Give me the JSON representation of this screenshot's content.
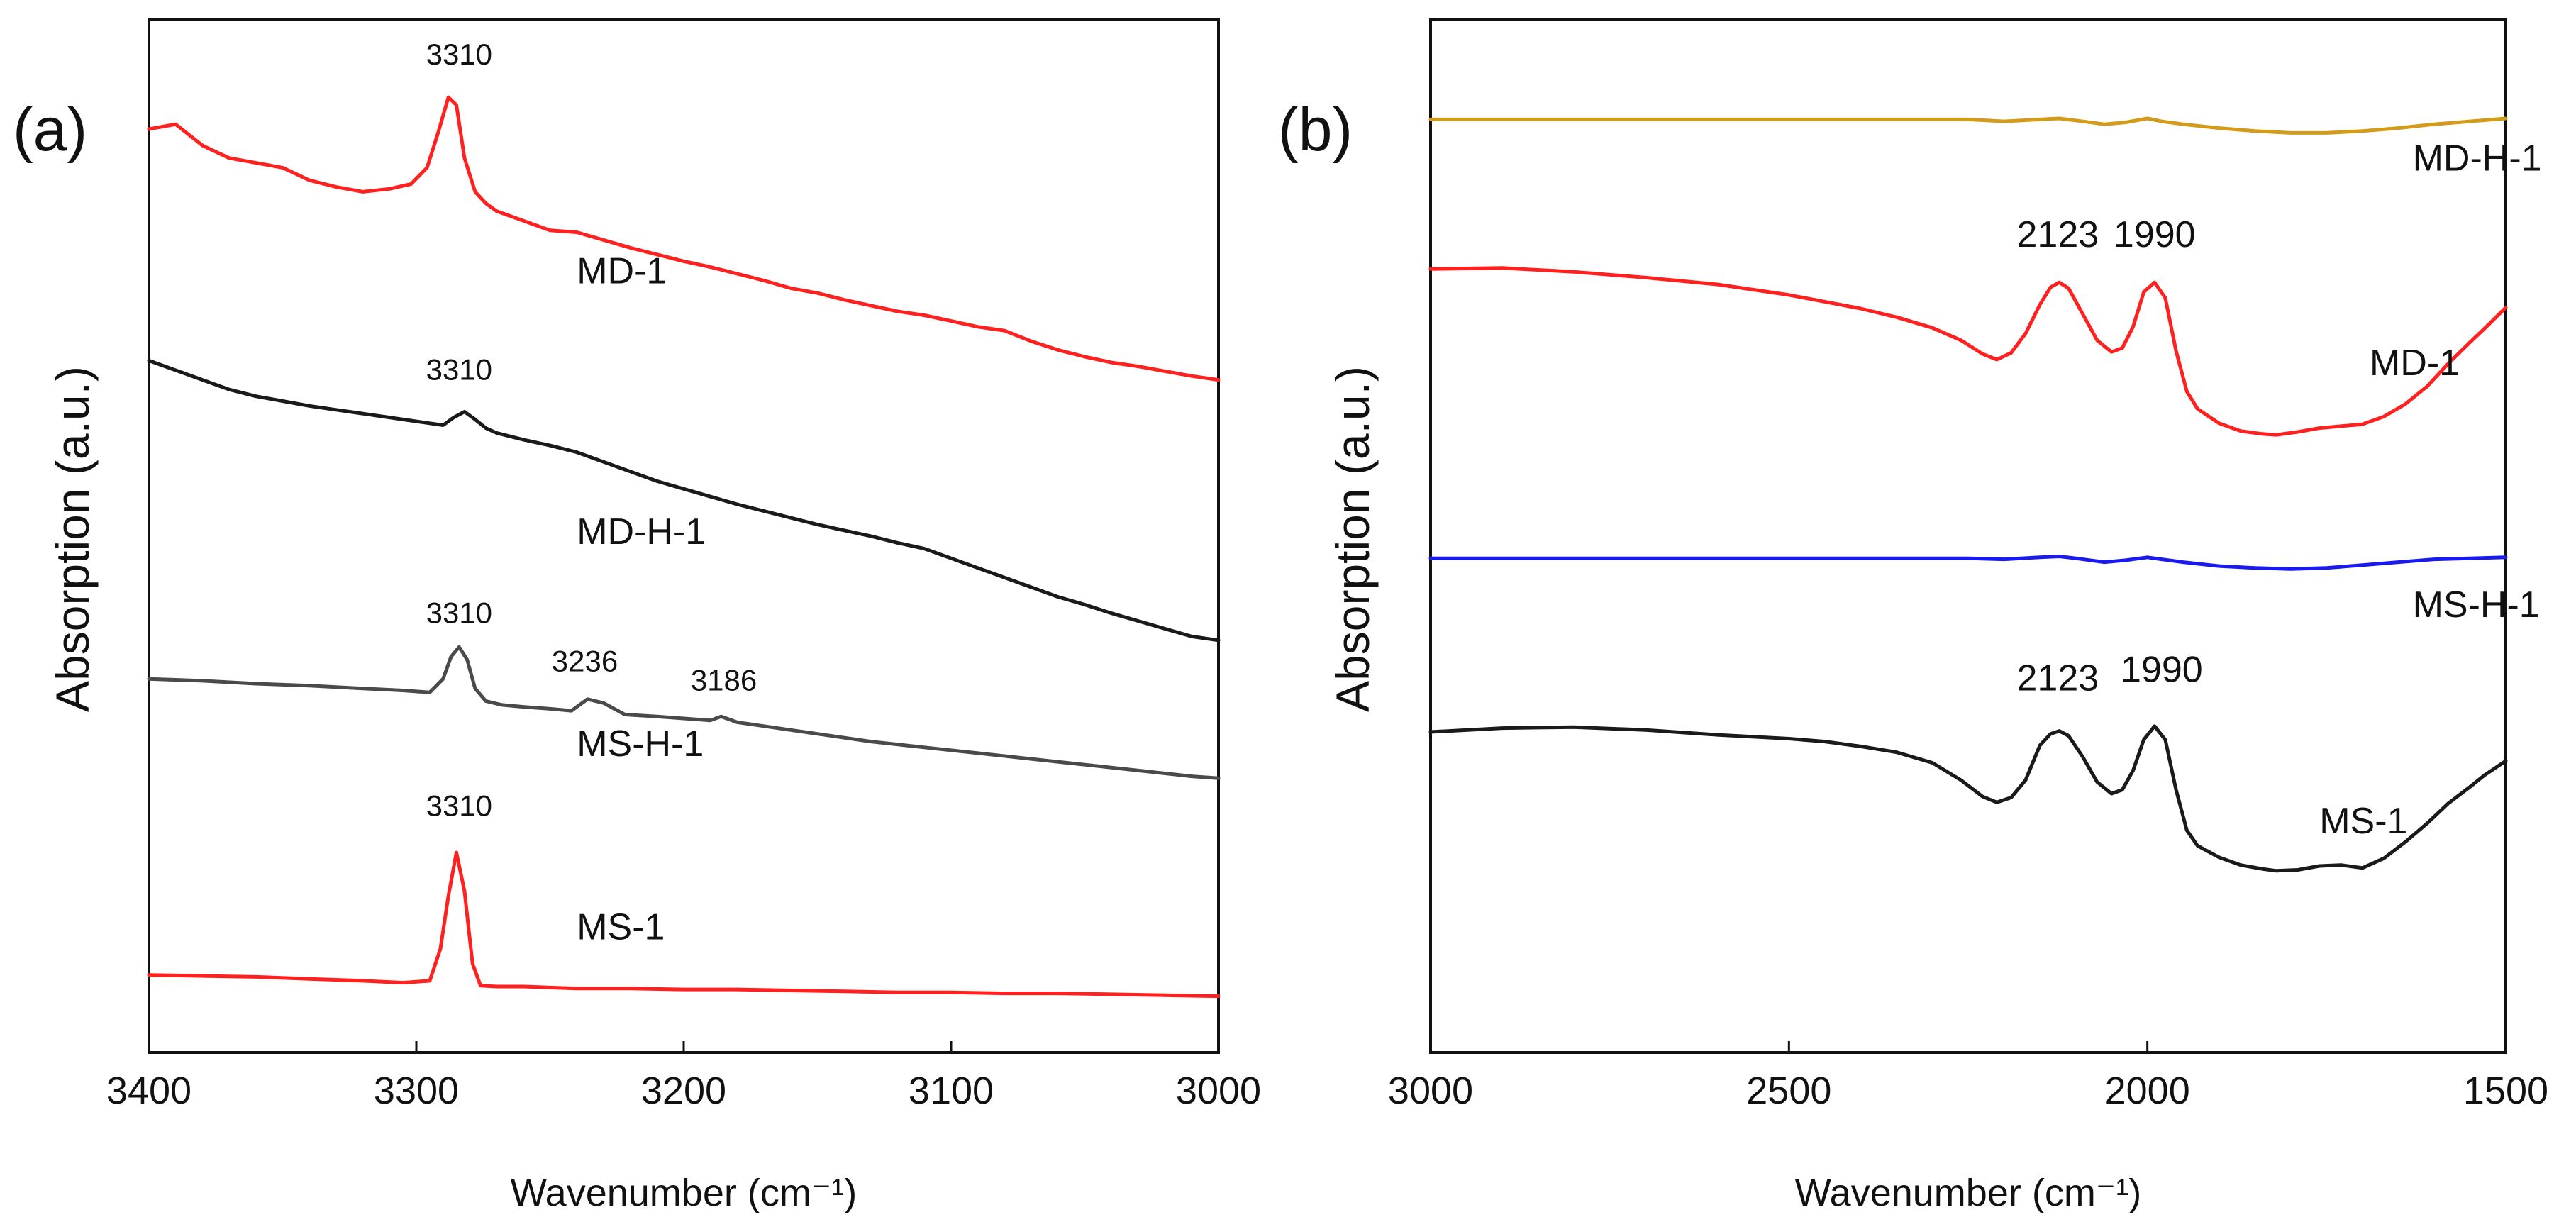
{
  "chart_data": [
    {
      "panel": "(a)",
      "type": "line",
      "xlabel": "Wavenumber (cm⁻¹)",
      "ylabel": "Absorption (a.u.)",
      "xlim": [
        3400,
        3000
      ],
      "ylim": [
        0,
        100
      ],
      "x_ticks": [
        "3400",
        "3300",
        "3200",
        "3100",
        "3000"
      ],
      "x_tick_values": [
        3400,
        3300,
        3200,
        3100,
        3000
      ],
      "grid": false,
      "series": [
        {
          "name": "MD-1",
          "color": "#ff2020",
          "x": [
            3400,
            3390,
            3380,
            3370,
            3360,
            3350,
            3340,
            3330,
            3320,
            3310,
            3302,
            3296,
            3292,
            3288,
            3285,
            3282,
            3278,
            3274,
            3270,
            3260,
            3250,
            3240,
            3230,
            3220,
            3210,
            3200,
            3190,
            3180,
            3170,
            3160,
            3150,
            3140,
            3130,
            3120,
            3110,
            3100,
            3090,
            3080,
            3070,
            3060,
            3050,
            3040,
            3030,
            3020,
            3010,
            3000
          ],
          "values": [
            92.5,
            93.0,
            90.8,
            89.5,
            89.0,
            88.5,
            87.2,
            86.5,
            86.0,
            86.3,
            86.8,
            88.5,
            92.0,
            95.8,
            95.0,
            89.5,
            86.0,
            84.8,
            84.0,
            83.0,
            82.0,
            81.8,
            81.0,
            80.2,
            79.5,
            78.8,
            78.2,
            77.5,
            76.8,
            76.0,
            75.5,
            74.8,
            74.2,
            73.6,
            73.2,
            72.6,
            72.0,
            71.6,
            70.5,
            69.6,
            68.9,
            68.3,
            67.9,
            67.4,
            66.9,
            66.5
          ]
        },
        {
          "name": "MD-H-1",
          "color": "#1a1a1a",
          "x": [
            3400,
            3390,
            3380,
            3370,
            3360,
            3350,
            3340,
            3330,
            3320,
            3310,
            3300,
            3295,
            3290,
            3286,
            3282,
            3278,
            3274,
            3270,
            3260,
            3250,
            3240,
            3230,
            3220,
            3210,
            3200,
            3190,
            3180,
            3170,
            3160,
            3150,
            3140,
            3130,
            3120,
            3110,
            3100,
            3090,
            3080,
            3070,
            3060,
            3050,
            3040,
            3030,
            3020,
            3010,
            3000
          ],
          "values": [
            68.5,
            67.5,
            66.5,
            65.5,
            64.8,
            64.3,
            63.8,
            63.4,
            63.0,
            62.6,
            62.2,
            62.0,
            61.8,
            62.6,
            63.2,
            62.4,
            61.5,
            61.0,
            60.3,
            59.7,
            59.0,
            58.0,
            57.0,
            56.0,
            55.2,
            54.4,
            53.6,
            52.9,
            52.2,
            51.5,
            50.9,
            50.3,
            49.6,
            49.0,
            48.0,
            47.0,
            46.0,
            45.0,
            44.0,
            43.2,
            42.3,
            41.5,
            40.7,
            39.9,
            39.5
          ]
        },
        {
          "name": "MS-H-1",
          "color": "#4a4a4a",
          "x": [
            3400,
            3380,
            3360,
            3340,
            3320,
            3305,
            3295,
            3290,
            3287,
            3284,
            3281,
            3278,
            3274,
            3268,
            3260,
            3250,
            3242,
            3236,
            3230,
            3222,
            3210,
            3200,
            3190,
            3186,
            3180,
            3170,
            3150,
            3130,
            3110,
            3090,
            3070,
            3050,
            3030,
            3010,
            3000
          ],
          "values": [
            35.5,
            35.3,
            35.0,
            34.8,
            34.5,
            34.3,
            34.1,
            35.5,
            37.8,
            38.8,
            37.5,
            34.5,
            33.2,
            32.8,
            32.6,
            32.4,
            32.2,
            33.4,
            33.0,
            31.8,
            31.6,
            31.4,
            31.2,
            31.6,
            31.0,
            30.6,
            29.8,
            29.0,
            28.4,
            27.8,
            27.2,
            26.6,
            26.0,
            25.4,
            25.2
          ]
        },
        {
          "name": "MS-1",
          "color": "#ff2020",
          "x": [
            3400,
            3380,
            3360,
            3340,
            3320,
            3305,
            3295,
            3291,
            3288,
            3285,
            3282,
            3279,
            3276,
            3270,
            3260,
            3250,
            3240,
            3220,
            3200,
            3180,
            3160,
            3140,
            3120,
            3100,
            3080,
            3060,
            3040,
            3020,
            3000
          ],
          "values": [
            4.8,
            4.7,
            4.6,
            4.4,
            4.2,
            4.0,
            4.2,
            7.5,
            13.0,
            17.5,
            13.5,
            6.0,
            3.7,
            3.6,
            3.6,
            3.5,
            3.4,
            3.4,
            3.3,
            3.3,
            3.2,
            3.1,
            3.0,
            3.0,
            2.9,
            2.9,
            2.8,
            2.7,
            2.6
          ]
        }
      ],
      "series_labels": [
        {
          "text": "MD-1",
          "x": 3240,
          "y": 76.5
        },
        {
          "text": "MD-H-1",
          "x": 3240,
          "y": 49.5
        },
        {
          "text": "MS-H-1",
          "x": 3240,
          "y": 27.5
        },
        {
          "text": "MS-1",
          "x": 3240,
          "y": 8.5
        }
      ],
      "annotations": [
        {
          "text": "3310",
          "x": 3284,
          "y": 99.2
        },
        {
          "text": "3310",
          "x": 3284,
          "y": 66.5
        },
        {
          "text": "3310",
          "x": 3284,
          "y": 41.3
        },
        {
          "text": "3236",
          "x": 3237,
          "y": 36.3
        },
        {
          "text": "3186",
          "x": 3185,
          "y": 34.3
        },
        {
          "text": "3310",
          "x": 3284,
          "y": 21.3
        }
      ]
    },
    {
      "panel": "(b)",
      "type": "line",
      "xlabel": "Wavenumber (cm⁻¹)",
      "ylabel": "Absorption (a.u.)",
      "xlim": [
        3000,
        1500
      ],
      "ylim": [
        0,
        100
      ],
      "x_ticks": [
        "3000",
        "2500",
        "2000",
        "1500"
      ],
      "x_tick_values": [
        3000,
        2500,
        2000,
        1500
      ],
      "grid": false,
      "series": [
        {
          "name": "MD-H-1",
          "color": "#d49a1a",
          "x": [
            3000,
            2800,
            2600,
            2400,
            2300,
            2250,
            2200,
            2150,
            2123,
            2100,
            2060,
            2030,
            2000,
            1980,
            1950,
            1900,
            1850,
            1800,
            1750,
            1700,
            1650,
            1600,
            1550,
            1500
          ],
          "values": [
            93.5,
            93.5,
            93.5,
            93.5,
            93.5,
            93.5,
            93.3,
            93.5,
            93.6,
            93.4,
            93.0,
            93.2,
            93.6,
            93.3,
            93.0,
            92.6,
            92.3,
            92.1,
            92.1,
            92.3,
            92.6,
            93.0,
            93.3,
            93.6
          ]
        },
        {
          "name": "MD-1",
          "color": "#ff2020",
          "x": [
            3000,
            2900,
            2800,
            2700,
            2600,
            2500,
            2450,
            2400,
            2350,
            2300,
            2260,
            2230,
            2210,
            2190,
            2170,
            2150,
            2135,
            2123,
            2110,
            2090,
            2070,
            2050,
            2035,
            2020,
            2005,
            1990,
            1975,
            1960,
            1945,
            1930,
            1900,
            1870,
            1840,
            1820,
            1790,
            1760,
            1730,
            1700,
            1670,
            1640,
            1610,
            1580,
            1550,
            1530,
            1500
          ],
          "values": [
            78.0,
            78.1,
            77.7,
            77.1,
            76.4,
            75.3,
            74.6,
            73.9,
            73.0,
            71.9,
            70.6,
            69.2,
            68.6,
            69.3,
            71.3,
            74.3,
            76.1,
            76.6,
            76.0,
            73.3,
            70.6,
            69.4,
            69.8,
            72.0,
            75.6,
            76.6,
            75.0,
            69.5,
            65.3,
            63.5,
            62.0,
            61.2,
            60.9,
            60.8,
            61.1,
            61.5,
            61.7,
            61.9,
            62.7,
            64.0,
            65.8,
            68.2,
            70.4,
            71.8,
            74.0
          ]
        },
        {
          "name": "MS-H-1",
          "color": "#1a1af0",
          "x": [
            3000,
            2800,
            2600,
            2400,
            2300,
            2250,
            2200,
            2150,
            2123,
            2100,
            2060,
            2030,
            2000,
            1980,
            1950,
            1900,
            1850,
            1800,
            1750,
            1700,
            1650,
            1600,
            1550,
            1500
          ],
          "values": [
            48.0,
            48.0,
            48.0,
            48.0,
            48.0,
            48.0,
            47.9,
            48.1,
            48.2,
            48.0,
            47.6,
            47.8,
            48.1,
            47.9,
            47.6,
            47.2,
            47.0,
            46.9,
            47.0,
            47.3,
            47.6,
            47.9,
            48.0,
            48.1
          ]
        },
        {
          "name": "MS-1",
          "color": "#1a1a1a",
          "x": [
            3000,
            2900,
            2800,
            2700,
            2600,
            2500,
            2450,
            2400,
            2350,
            2300,
            2260,
            2230,
            2210,
            2190,
            2170,
            2150,
            2135,
            2123,
            2110,
            2090,
            2070,
            2050,
            2035,
            2020,
            2005,
            1990,
            1975,
            1960,
            1945,
            1930,
            1900,
            1870,
            1840,
            1820,
            1790,
            1760,
            1730,
            1700,
            1670,
            1640,
            1610,
            1580,
            1550,
            1530,
            1500
          ],
          "values": [
            30.0,
            30.4,
            30.5,
            30.2,
            29.7,
            29.3,
            29.0,
            28.5,
            27.9,
            26.8,
            25.0,
            23.3,
            22.7,
            23.2,
            25.0,
            28.6,
            29.8,
            30.1,
            29.6,
            27.4,
            24.8,
            23.6,
            24.0,
            26.0,
            29.2,
            30.6,
            29.2,
            24.0,
            19.8,
            18.2,
            17.0,
            16.2,
            15.8,
            15.6,
            15.7,
            16.1,
            16.2,
            15.9,
            16.9,
            18.6,
            20.5,
            22.6,
            24.3,
            25.5,
            27.0
          ]
        }
      ],
      "series_labels": [
        {
          "text": "MD-H-1",
          "x": 1630,
          "y": 88.2
        },
        {
          "text": "MD-1",
          "x": 1690,
          "y": 67.0
        },
        {
          "text": "MS-H-1",
          "x": 1630,
          "y": 41.9
        },
        {
          "text": "MS-1",
          "x": 1760,
          "y": 19.5
        }
      ],
      "annotations": [
        {
          "text": "2123",
          "x": 2125,
          "y": 80.3
        },
        {
          "text": "1990",
          "x": 1990,
          "y": 80.3
        },
        {
          "text": "2123",
          "x": 2125,
          "y": 34.3
        },
        {
          "text": "1990",
          "x": 1980,
          "y": 35.2
        }
      ]
    }
  ]
}
